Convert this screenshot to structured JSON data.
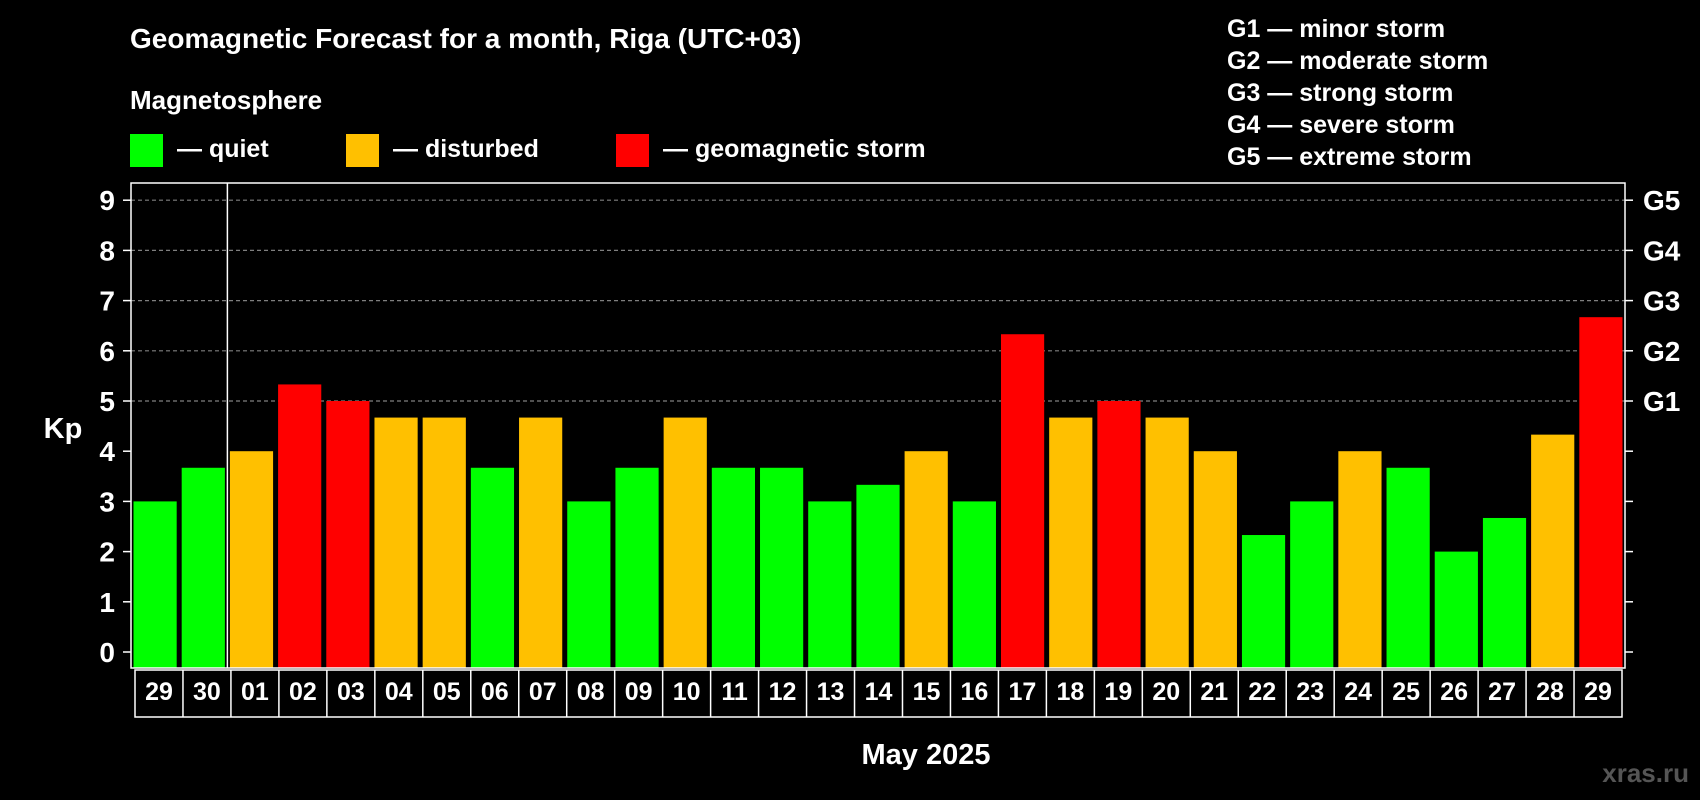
{
  "colors": {
    "background": "#000000",
    "text": "#ffffff",
    "quiet": "#00ff00",
    "disturbed": "#ffc000",
    "storm": "#ff0000",
    "grid": "#7f7f7f",
    "watermark": "#555555"
  },
  "legend": {
    "heading": "Magnetosphere",
    "items": [
      {
        "key": "quiet",
        "label": "— quiet"
      },
      {
        "key": "disturbed",
        "label": "— disturbed"
      },
      {
        "key": "storm",
        "label": "— geomagnetic storm"
      }
    ]
  },
  "storm_scale": [
    "G1 — minor storm",
    "G2 — moderate storm",
    "G3 — strong storm",
    "G4 — severe storm",
    "G5 — extreme storm"
  ],
  "watermark": "xras.ru",
  "chart_data": {
    "type": "bar",
    "title": "Geomagnetic Forecast for a month, Riga (UTC+03)",
    "xlabel": "May 2025",
    "ylabel": "Kp",
    "ylim": [
      0,
      9.3
    ],
    "yticks": [
      "0",
      "1",
      "2",
      "3",
      "4",
      "5",
      "6",
      "7",
      "8",
      "9"
    ],
    "grid_levels": [
      5,
      6,
      7,
      8,
      9
    ],
    "g_levels": [
      {
        "kp": 5,
        "label": "G1"
      },
      {
        "kp": 6,
        "label": "G2"
      },
      {
        "kp": 7,
        "label": "G3"
      },
      {
        "kp": 8,
        "label": "G4"
      },
      {
        "kp": 9,
        "label": "G5"
      }
    ],
    "month_divider_after_index": 1,
    "categories": [
      "29",
      "30",
      "01",
      "02",
      "03",
      "04",
      "05",
      "06",
      "07",
      "08",
      "09",
      "10",
      "11",
      "12",
      "13",
      "14",
      "15",
      "16",
      "17",
      "18",
      "19",
      "20",
      "21",
      "22",
      "23",
      "24",
      "25",
      "26",
      "27",
      "28",
      "29"
    ],
    "values": [
      3.0,
      3.67,
      4.0,
      5.33,
      5.0,
      4.67,
      4.67,
      3.67,
      4.67,
      3.0,
      3.67,
      4.67,
      3.67,
      3.67,
      3.0,
      3.33,
      4.0,
      3.0,
      6.33,
      4.67,
      5.0,
      4.67,
      4.0,
      2.33,
      3.0,
      4.0,
      3.67,
      2.0,
      2.67,
      4.33,
      6.67
    ],
    "status": [
      "quiet",
      "quiet",
      "disturbed",
      "storm",
      "storm",
      "disturbed",
      "disturbed",
      "quiet",
      "disturbed",
      "quiet",
      "quiet",
      "disturbed",
      "quiet",
      "quiet",
      "quiet",
      "quiet",
      "disturbed",
      "quiet",
      "storm",
      "disturbed",
      "storm",
      "disturbed",
      "disturbed",
      "quiet",
      "quiet",
      "disturbed",
      "quiet",
      "quiet",
      "quiet",
      "disturbed",
      "storm"
    ]
  }
}
